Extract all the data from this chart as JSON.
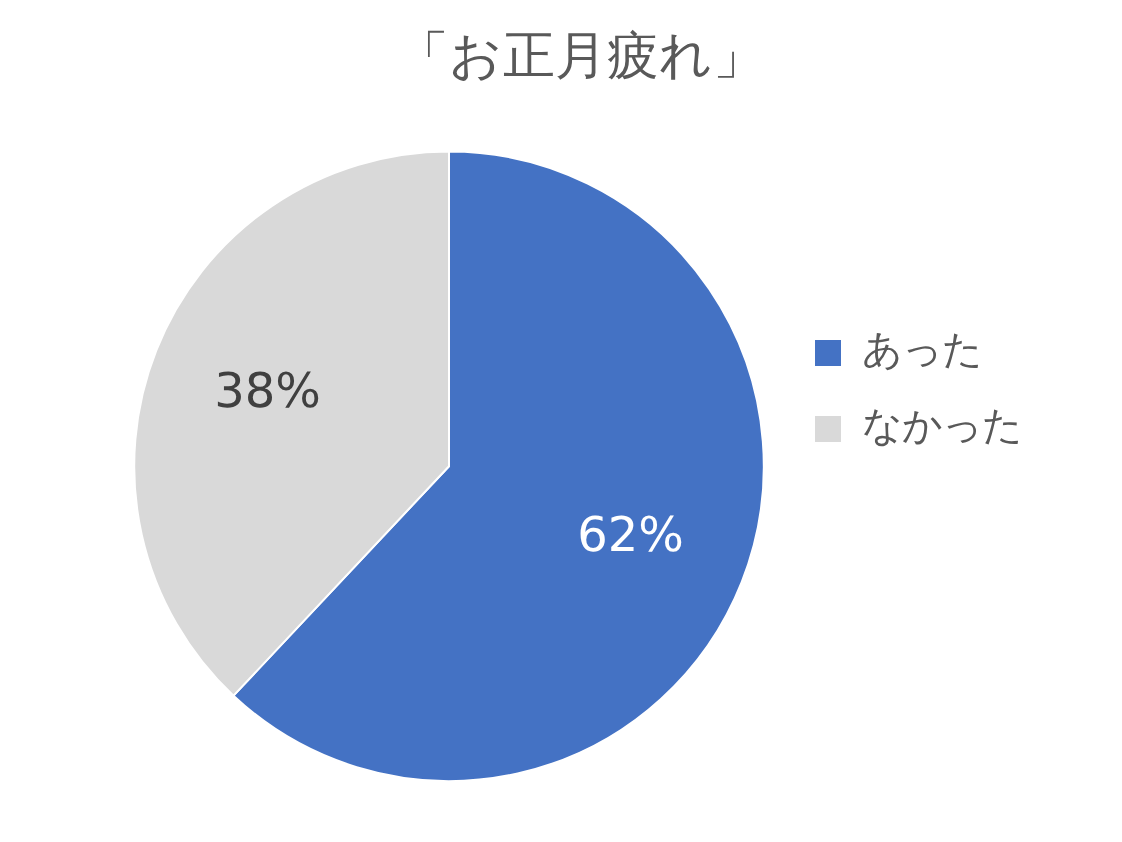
{
  "chart_data": {
    "type": "pie",
    "title": "「お正月疲れ」",
    "categories": [
      "あった",
      "なかった"
    ],
    "values": [
      62,
      38
    ],
    "colors": [
      "#4472c4",
      "#d9d9d9"
    ],
    "value_labels": [
      "62%",
      "38%"
    ],
    "legend": "right"
  }
}
